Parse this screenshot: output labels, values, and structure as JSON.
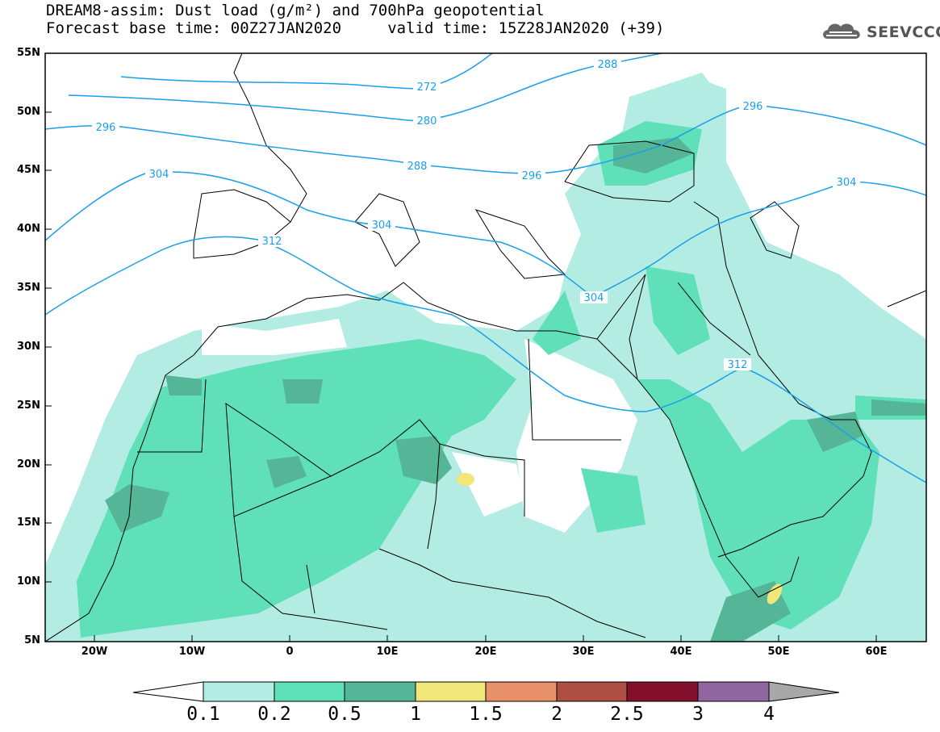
{
  "title_line1": "DREAM8-assim: Dust load (g/m²) and 700hPa geopotential",
  "title_line2": "Forecast base time: 00Z27JAN2020     valid time: 15Z28JAN2020 (+39)",
  "logo_text": "SEEVCCC",
  "lat_labels": [
    "55N",
    "50N",
    "45N",
    "40N",
    "35N",
    "30N",
    "25N",
    "20N",
    "15N",
    "10N",
    "5N"
  ],
  "lon_labels": [
    "20W",
    "10W",
    "0",
    "10E",
    "20E",
    "30E",
    "40E",
    "50E",
    "60E"
  ],
  "contour_labels": [
    "272",
    "280",
    "288",
    "288",
    "296",
    "296",
    "296",
    "304",
    "304",
    "304",
    "304",
    "312",
    "312"
  ],
  "colorbar": {
    "labels": [
      "0.1",
      "0.2",
      "0.5",
      "1",
      "1.5",
      "2",
      "2.5",
      "3",
      "4"
    ],
    "colors": [
      "#b3ece3",
      "#5fe0b9",
      "#55b697",
      "#f0e67a",
      "#e8906a",
      "#ad4f42",
      "#82102c",
      "#9066a0"
    ],
    "under_color": "#ffffff",
    "over_color": "#a8a8a8"
  },
  "contour_color": "#1a9fe8"
}
